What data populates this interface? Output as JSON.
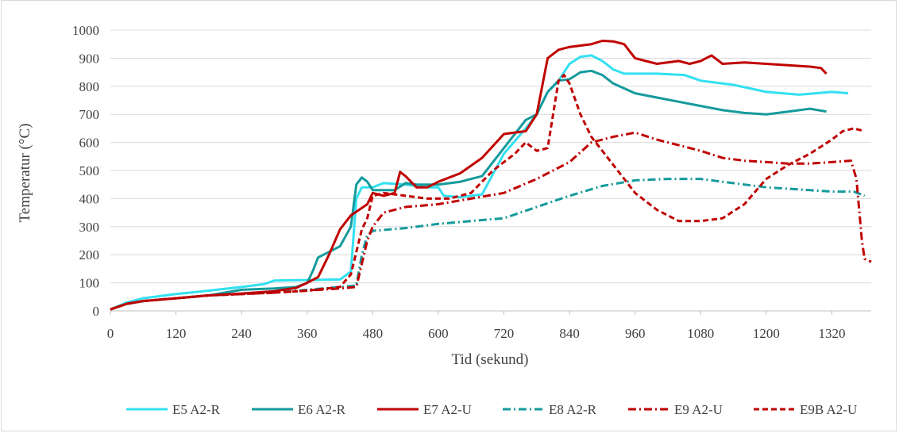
{
  "chart_data": {
    "type": "line",
    "title": "",
    "xlabel": "Tid (sekund)",
    "ylabel": "Temperatur (°C)",
    "xlim": [
      0,
      1392
    ],
    "ylim": [
      0,
      1000
    ],
    "x_ticks": [
      0,
      120,
      240,
      360,
      480,
      600,
      720,
      840,
      960,
      1080,
      1200,
      1320
    ],
    "y_ticks": [
      0,
      100,
      200,
      300,
      400,
      500,
      600,
      700,
      800,
      900,
      1000
    ],
    "grid": "horizontal",
    "legend": "bottom",
    "series": [
      {
        "name": "E5 A2-R",
        "color": "#33e0f0",
        "dash": "solid",
        "points": [
          [
            0,
            5
          ],
          [
            30,
            30
          ],
          [
            60,
            45
          ],
          [
            120,
            60
          ],
          [
            180,
            72
          ],
          [
            240,
            85
          ],
          [
            280,
            95
          ],
          [
            300,
            108
          ],
          [
            360,
            110
          ],
          [
            420,
            112
          ],
          [
            440,
            140
          ],
          [
            450,
            400
          ],
          [
            460,
            440
          ],
          [
            480,
            440
          ],
          [
            500,
            455
          ],
          [
            540,
            450
          ],
          [
            580,
            440
          ],
          [
            600,
            440
          ],
          [
            610,
            410
          ],
          [
            640,
            405
          ],
          [
            680,
            415
          ],
          [
            720,
            560
          ],
          [
            760,
            650
          ],
          [
            780,
            700
          ],
          [
            800,
            780
          ],
          [
            820,
            820
          ],
          [
            840,
            880
          ],
          [
            860,
            905
          ],
          [
            880,
            910
          ],
          [
            900,
            890
          ],
          [
            920,
            860
          ],
          [
            940,
            845
          ],
          [
            1000,
            845
          ],
          [
            1050,
            840
          ],
          [
            1080,
            820
          ],
          [
            1100,
            815
          ],
          [
            1140,
            805
          ],
          [
            1200,
            780
          ],
          [
            1260,
            770
          ],
          [
            1320,
            780
          ],
          [
            1350,
            775
          ]
        ]
      },
      {
        "name": "E6 A2-R",
        "color": "#159a9c",
        "dash": "solid",
        "points": [
          [
            0,
            5
          ],
          [
            30,
            25
          ],
          [
            60,
            35
          ],
          [
            120,
            45
          ],
          [
            180,
            55
          ],
          [
            240,
            75
          ],
          [
            300,
            80
          ],
          [
            340,
            85
          ],
          [
            360,
            100
          ],
          [
            370,
            140
          ],
          [
            380,
            190
          ],
          [
            400,
            210
          ],
          [
            420,
            230
          ],
          [
            440,
            300
          ],
          [
            450,
            450
          ],
          [
            460,
            475
          ],
          [
            470,
            460
          ],
          [
            480,
            430
          ],
          [
            520,
            430
          ],
          [
            540,
            455
          ],
          [
            560,
            450
          ],
          [
            600,
            450
          ],
          [
            640,
            460
          ],
          [
            680,
            480
          ],
          [
            720,
            580
          ],
          [
            760,
            680
          ],
          [
            780,
            700
          ],
          [
            800,
            780
          ],
          [
            820,
            820
          ],
          [
            840,
            825
          ],
          [
            860,
            850
          ],
          [
            880,
            855
          ],
          [
            900,
            840
          ],
          [
            920,
            810
          ],
          [
            960,
            775
          ],
          [
            1000,
            760
          ],
          [
            1040,
            745
          ],
          [
            1080,
            730
          ],
          [
            1120,
            715
          ],
          [
            1160,
            705
          ],
          [
            1200,
            700
          ],
          [
            1240,
            710
          ],
          [
            1280,
            720
          ],
          [
            1310,
            710
          ]
        ]
      },
      {
        "name": "E7 A2-U",
        "color": "#c00000",
        "dash": "solid",
        "points": [
          [
            0,
            5
          ],
          [
            30,
            25
          ],
          [
            60,
            35
          ],
          [
            120,
            45
          ],
          [
            180,
            55
          ],
          [
            240,
            62
          ],
          [
            300,
            70
          ],
          [
            340,
            82
          ],
          [
            360,
            100
          ],
          [
            380,
            120
          ],
          [
            400,
            200
          ],
          [
            420,
            290
          ],
          [
            440,
            340
          ],
          [
            455,
            360
          ],
          [
            470,
            380
          ],
          [
            480,
            420
          ],
          [
            500,
            410
          ],
          [
            520,
            420
          ],
          [
            530,
            495
          ],
          [
            540,
            480
          ],
          [
            560,
            440
          ],
          [
            580,
            440
          ],
          [
            600,
            460
          ],
          [
            640,
            490
          ],
          [
            680,
            545
          ],
          [
            720,
            630
          ],
          [
            760,
            640
          ],
          [
            780,
            700
          ],
          [
            790,
            800
          ],
          [
            800,
            900
          ],
          [
            820,
            930
          ],
          [
            840,
            940
          ],
          [
            880,
            950
          ],
          [
            900,
            962
          ],
          [
            920,
            960
          ],
          [
            940,
            950
          ],
          [
            960,
            900
          ],
          [
            1000,
            880
          ],
          [
            1040,
            890
          ],
          [
            1060,
            880
          ],
          [
            1080,
            890
          ],
          [
            1100,
            910
          ],
          [
            1120,
            880
          ],
          [
            1160,
            885
          ],
          [
            1200,
            880
          ],
          [
            1240,
            875
          ],
          [
            1280,
            870
          ],
          [
            1300,
            865
          ],
          [
            1310,
            845
          ]
        ]
      },
      {
        "name": "E8 A2-R",
        "color": "#159a9c",
        "dash": "dashdot",
        "points": [
          [
            0,
            5
          ],
          [
            30,
            25
          ],
          [
            60,
            35
          ],
          [
            120,
            45
          ],
          [
            180,
            55
          ],
          [
            240,
            60
          ],
          [
            300,
            65
          ],
          [
            360,
            75
          ],
          [
            420,
            85
          ],
          [
            450,
            90
          ],
          [
            460,
            200
          ],
          [
            470,
            270
          ],
          [
            480,
            285
          ],
          [
            540,
            295
          ],
          [
            600,
            310
          ],
          [
            660,
            320
          ],
          [
            720,
            330
          ],
          [
            780,
            370
          ],
          [
            840,
            410
          ],
          [
            900,
            445
          ],
          [
            960,
            465
          ],
          [
            1020,
            470
          ],
          [
            1080,
            470
          ],
          [
            1120,
            460
          ],
          [
            1160,
            450
          ],
          [
            1200,
            440
          ],
          [
            1240,
            435
          ],
          [
            1280,
            430
          ],
          [
            1320,
            425
          ],
          [
            1360,
            425
          ],
          [
            1380,
            410
          ]
        ]
      },
      {
        "name": "E9 A2-U",
        "color": "#c00000",
        "dash": "dashdot",
        "points": [
          [
            0,
            5
          ],
          [
            30,
            25
          ],
          [
            60,
            35
          ],
          [
            120,
            45
          ],
          [
            180,
            55
          ],
          [
            240,
            60
          ],
          [
            300,
            65
          ],
          [
            360,
            72
          ],
          [
            420,
            80
          ],
          [
            450,
            85
          ],
          [
            470,
            250
          ],
          [
            480,
            300
          ],
          [
            500,
            350
          ],
          [
            540,
            370
          ],
          [
            600,
            380
          ],
          [
            660,
            400
          ],
          [
            720,
            420
          ],
          [
            780,
            470
          ],
          [
            840,
            530
          ],
          [
            880,
            600
          ],
          [
            920,
            620
          ],
          [
            960,
            635
          ],
          [
            1000,
            610
          ],
          [
            1040,
            590
          ],
          [
            1080,
            570
          ],
          [
            1120,
            545
          ],
          [
            1160,
            535
          ],
          [
            1200,
            530
          ],
          [
            1240,
            525
          ],
          [
            1280,
            525
          ],
          [
            1320,
            530
          ],
          [
            1355,
            535
          ],
          [
            1365,
            470
          ],
          [
            1375,
            250
          ],
          [
            1380,
            185
          ],
          [
            1392,
            175
          ]
        ]
      },
      {
        "name": "E9B A2-U",
        "color": "#c00000",
        "dash": "dashed",
        "points": [
          [
            0,
            5
          ],
          [
            30,
            25
          ],
          [
            60,
            35
          ],
          [
            120,
            45
          ],
          [
            180,
            55
          ],
          [
            240,
            60
          ],
          [
            300,
            65
          ],
          [
            360,
            72
          ],
          [
            420,
            85
          ],
          [
            440,
            130
          ],
          [
            460,
            290
          ],
          [
            470,
            330
          ],
          [
            480,
            410
          ],
          [
            500,
            420
          ],
          [
            540,
            410
          ],
          [
            580,
            400
          ],
          [
            620,
            400
          ],
          [
            660,
            420
          ],
          [
            700,
            500
          ],
          [
            740,
            560
          ],
          [
            760,
            600
          ],
          [
            780,
            570
          ],
          [
            800,
            580
          ],
          [
            820,
            820
          ],
          [
            830,
            840
          ],
          [
            840,
            810
          ],
          [
            860,
            700
          ],
          [
            880,
            620
          ],
          [
            920,
            520
          ],
          [
            960,
            420
          ],
          [
            1000,
            360
          ],
          [
            1040,
            320
          ],
          [
            1080,
            320
          ],
          [
            1120,
            330
          ],
          [
            1160,
            380
          ],
          [
            1200,
            470
          ],
          [
            1240,
            520
          ],
          [
            1280,
            560
          ],
          [
            1320,
            610
          ],
          [
            1340,
            640
          ],
          [
            1360,
            650
          ],
          [
            1380,
            640
          ]
        ]
      }
    ]
  }
}
